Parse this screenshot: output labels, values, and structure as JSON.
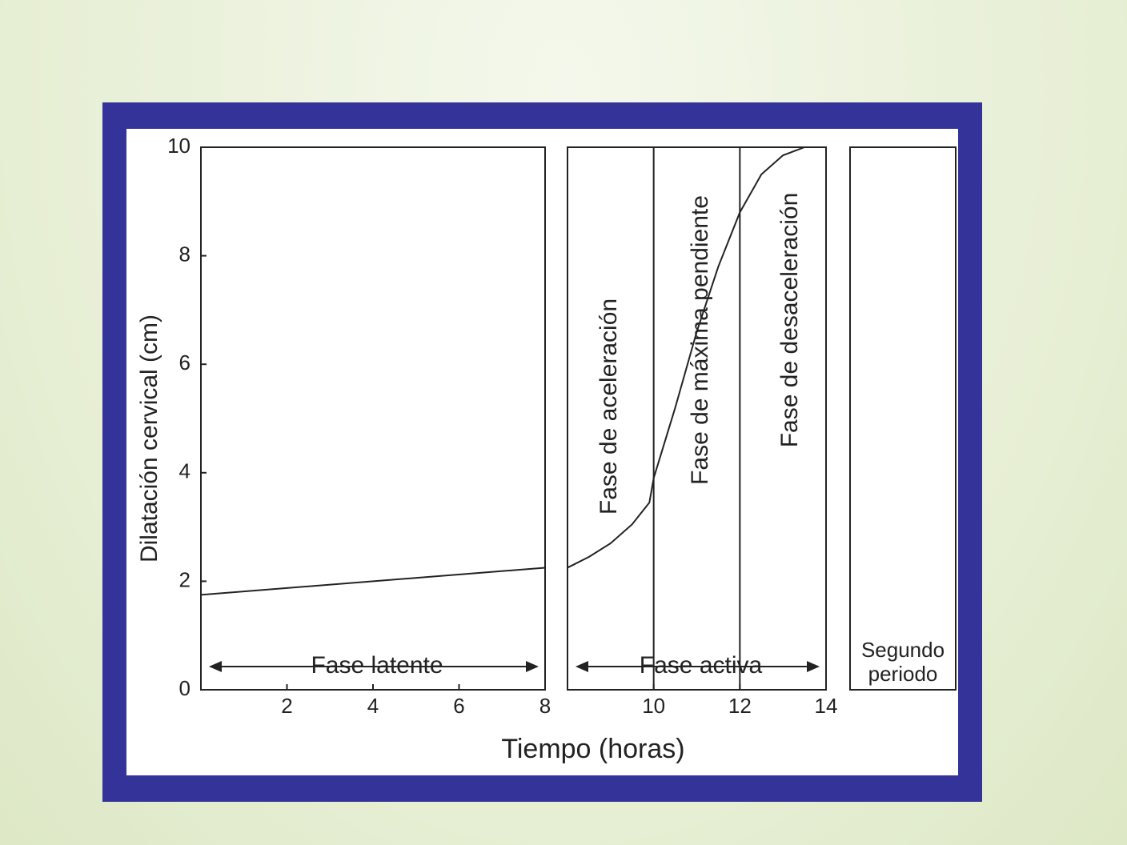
{
  "chart_data": {
    "type": "line",
    "x_label": "Tiempo (horas)",
    "y_label": "Dilatación cervical (cm)",
    "ylim": [
      0,
      10
    ],
    "yticks": [
      0,
      2,
      4,
      6,
      8,
      10
    ],
    "color": "#222222",
    "panels": [
      {
        "xlim": [
          0,
          8
        ],
        "xticks": [
          2,
          4,
          6,
          8
        ],
        "label": "Fase latente",
        "x": [
          0,
          8
        ],
        "values": [
          1.75,
          2.25
        ]
      },
      {
        "xlim": [
          8,
          14
        ],
        "xticks": [
          10,
          12,
          14
        ],
        "label": "Fase activa",
        "x": [
          8,
          8.5,
          9,
          9.5,
          9.9,
          10,
          10.5,
          11,
          11.5,
          12,
          12.5,
          13,
          13.5,
          14
        ],
        "values": [
          2.25,
          2.45,
          2.7,
          3.05,
          3.45,
          3.9,
          5.2,
          6.6,
          7.8,
          8.8,
          9.5,
          9.85,
          10,
          10
        ],
        "phase_lines": [
          10,
          12
        ],
        "phase_labels": [
          "Fase de aceleración",
          "Fase de máxima pendiente",
          "Fase de desaceleración"
        ]
      },
      {
        "label": [
          "Segundo",
          "periodo"
        ]
      }
    ]
  }
}
